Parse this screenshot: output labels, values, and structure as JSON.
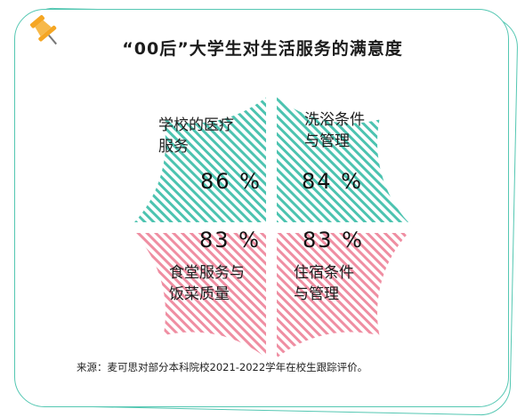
{
  "colors": {
    "teal": "#4cc3b0",
    "pink": "#ef8ea2",
    "frame": "#54c7b2",
    "pin": "#f5a623"
  },
  "icons": {
    "pin": "pushpin-icon"
  },
  "chart_data": {
    "type": "pie",
    "title": "“00后”大学生对生活服务的满意度",
    "unit": "%",
    "items": [
      {
        "label_lines": [
          "学校的医疗",
          "服务"
        ],
        "value": 86,
        "value_label": "86 %",
        "color": "#4cc3b0"
      },
      {
        "label_lines": [
          "洗浴条件",
          "与管理"
        ],
        "value": 84,
        "value_label": "84 %",
        "color": "#4cc3b0"
      },
      {
        "label_lines": [
          "食堂服务与",
          "饭菜质量"
        ],
        "value": 83,
        "value_label": "83 %",
        "color": "#ef8ea2"
      },
      {
        "label_lines": [
          "住宿条件",
          "与管理"
        ],
        "value": 83,
        "value_label": "83 %",
        "color": "#ef8ea2"
      }
    ]
  },
  "source": "来源：麦可思对部分本科院校2021-2022学年在校生跟踪评价。"
}
